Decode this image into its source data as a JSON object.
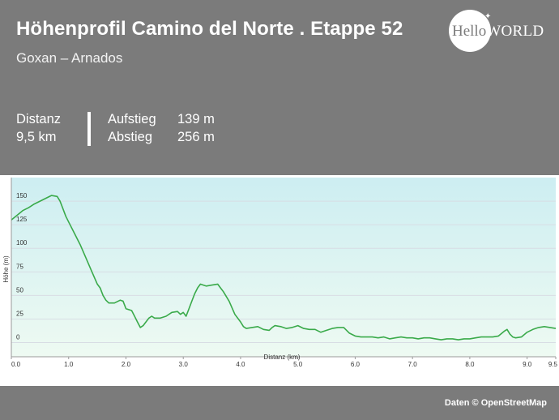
{
  "header": {
    "title": "Höhenprofil Camino del Norte . Etappe 52",
    "subtitle": "Goxan – Arnados"
  },
  "stats": {
    "distance_label": "Distanz",
    "distance_value": "9,5 km",
    "ascent_label": "Aufstieg",
    "ascent_value": "139 m",
    "descent_label": "Abstieg",
    "descent_value": "256 m"
  },
  "logo": {
    "part1": "Hello",
    "part2": "WORLD",
    "icon": "bird-icon"
  },
  "footer": {
    "credit": "Daten © OpenStreetMap"
  },
  "colors": {
    "header_bg": "#7b7b7b",
    "line": "#3aaa4a",
    "fill_top": "#cdeef2",
    "fill_bottom": "#eefaf2",
    "grid": "#d8dde4"
  },
  "chart_data": {
    "type": "area",
    "xlabel": "Distanz  (km)",
    "ylabel": "Höhe (m)",
    "xlim": [
      0,
      9.5
    ],
    "ylim": [
      -15,
      175
    ],
    "x_ticks": [
      0,
      1,
      2,
      3,
      4,
      5,
      6,
      7,
      8,
      9,
      9.5
    ],
    "x_tick_labels": [
      "0.0",
      "1.0",
      "2.0",
      "3.0",
      "4.0",
      "5.0",
      "6.0",
      "7.0",
      "8.0",
      "9.0",
      "9.5"
    ],
    "y_ticks": [
      0,
      25,
      50,
      75,
      100,
      125,
      150
    ],
    "y_tick_labels": [
      "0",
      "25",
      "50",
      "75",
      "100",
      "125",
      "150"
    ],
    "grid": true,
    "series": [
      {
        "x": [
          0,
          0.1,
          0.2,
          0.3,
          0.4,
          0.5,
          0.6,
          0.7,
          0.8,
          0.85,
          0.9,
          0.95,
          1.0,
          1.1,
          1.2,
          1.3,
          1.4,
          1.5,
          1.55,
          1.6,
          1.65,
          1.7,
          1.8,
          1.9,
          1.95,
          2.0,
          2.1,
          2.15,
          2.2,
          2.25,
          2.3,
          2.35,
          2.4,
          2.45,
          2.5,
          2.6,
          2.7,
          2.8,
          2.9,
          2.95,
          3.0,
          3.05,
          3.1,
          3.15,
          3.2,
          3.25,
          3.3,
          3.35,
          3.4,
          3.5,
          3.6,
          3.65,
          3.7,
          3.8,
          3.9,
          4.0,
          4.05,
          4.1,
          4.2,
          4.3,
          4.4,
          4.5,
          4.55,
          4.6,
          4.7,
          4.8,
          4.9,
          5.0,
          5.1,
          5.2,
          5.3,
          5.4,
          5.5,
          5.6,
          5.7,
          5.8,
          5.9,
          6.0,
          6.1,
          6.2,
          6.3,
          6.4,
          6.5,
          6.6,
          6.7,
          6.8,
          6.9,
          7.0,
          7.1,
          7.2,
          7.3,
          7.4,
          7.5,
          7.6,
          7.7,
          7.8,
          7.9,
          8.0,
          8.1,
          8.2,
          8.3,
          8.4,
          8.5,
          8.6,
          8.65,
          8.7,
          8.75,
          8.8,
          8.9,
          9.0,
          9.1,
          9.2,
          9.3,
          9.4,
          9.5
        ],
        "y": [
          130,
          135,
          140,
          143,
          147,
          150,
          153,
          156,
          155,
          150,
          142,
          134,
          128,
          116,
          104,
          90,
          76,
          62,
          58,
          50,
          45,
          42,
          42,
          45,
          44,
          36,
          34,
          28,
          22,
          16,
          18,
          22,
          26,
          28,
          26,
          26,
          28,
          32,
          33,
          30,
          32,
          28,
          36,
          44,
          52,
          58,
          62,
          61,
          60,
          61,
          62,
          58,
          54,
          44,
          30,
          22,
          17,
          15,
          16,
          17,
          14,
          13,
          16,
          18,
          17,
          15,
          16,
          18,
          15,
          14,
          14,
          11,
          13,
          15,
          16,
          16,
          10,
          7,
          6,
          6,
          6,
          5,
          6,
          4,
          5,
          6,
          5,
          5,
          4,
          5,
          5,
          4,
          3,
          4,
          4,
          3,
          4,
          4,
          5,
          6,
          6,
          6,
          7,
          12,
          14,
          9,
          6,
          5,
          6,
          11,
          14,
          16,
          17,
          16,
          15
        ]
      }
    ]
  }
}
